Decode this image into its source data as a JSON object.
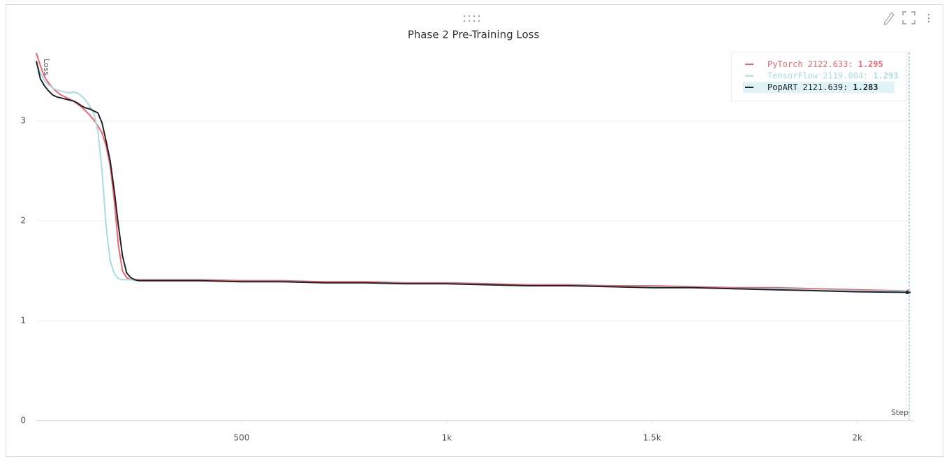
{
  "chart_data": {
    "type": "line",
    "title": "Phase 2 Pre-Training Loss",
    "y_label": "Loss",
    "x_label": "Step",
    "x": [
      0,
      10,
      20,
      30,
      40,
      50,
      60,
      70,
      80,
      90,
      100,
      110,
      120,
      130,
      140,
      150,
      160,
      170,
      180,
      190,
      200,
      210,
      220,
      230,
      240,
      250,
      300,
      400,
      500,
      600,
      700,
      800,
      900,
      1000,
      1100,
      1200,
      1300,
      1400,
      1500,
      1600,
      1700,
      1800,
      1900,
      2000,
      2100,
      2130
    ],
    "series": [
      {
        "name": "PyTorch",
        "color": "#ee6770",
        "hover_step": {
          "value": 2122.633,
          "label": "2122.633:"
        },
        "hover_value": 1.295,
        "values": [
          3.68,
          3.55,
          3.44,
          3.38,
          3.33,
          3.29,
          3.26,
          3.24,
          3.22,
          3.2,
          3.17,
          3.14,
          3.1,
          3.06,
          3.01,
          2.95,
          2.88,
          2.75,
          2.55,
          2.2,
          1.75,
          1.5,
          1.43,
          1.41,
          1.41,
          1.41,
          1.41,
          1.41,
          1.4,
          1.4,
          1.39,
          1.39,
          1.38,
          1.38,
          1.37,
          1.36,
          1.36,
          1.35,
          1.35,
          1.34,
          1.33,
          1.33,
          1.32,
          1.31,
          1.3,
          1.295
        ]
      },
      {
        "name": "TensorFlow",
        "color": "#a8dde1",
        "hover_step": {
          "value": 2119.004,
          "label": "2119.004:"
        },
        "hover_value": 1.293,
        "values": [
          3.58,
          3.48,
          3.4,
          3.36,
          3.33,
          3.31,
          3.3,
          3.29,
          3.28,
          3.29,
          3.28,
          3.25,
          3.21,
          3.15,
          3.08,
          2.9,
          2.5,
          1.95,
          1.6,
          1.47,
          1.42,
          1.41,
          1.41,
          1.41,
          1.4,
          1.4,
          1.4,
          1.4,
          1.39,
          1.39,
          1.38,
          1.38,
          1.37,
          1.37,
          1.36,
          1.35,
          1.35,
          1.34,
          1.34,
          1.33,
          1.32,
          1.32,
          1.31,
          1.3,
          1.295,
          1.293
        ]
      },
      {
        "name": "PopART",
        "color": "#1f2329",
        "hover_step": {
          "value": 2121.639,
          "label": "2121.639:"
        },
        "hover_value": 1.283,
        "values": [
          3.6,
          3.42,
          3.35,
          3.3,
          3.26,
          3.24,
          3.23,
          3.22,
          3.21,
          3.2,
          3.18,
          3.15,
          3.13,
          3.12,
          3.1,
          3.08,
          2.98,
          2.8,
          2.6,
          2.3,
          1.95,
          1.65,
          1.48,
          1.43,
          1.41,
          1.4,
          1.4,
          1.4,
          1.39,
          1.39,
          1.38,
          1.38,
          1.37,
          1.37,
          1.36,
          1.35,
          1.35,
          1.34,
          1.33,
          1.33,
          1.32,
          1.31,
          1.3,
          1.29,
          1.285,
          1.283
        ]
      }
    ],
    "xlim": [
      0,
      2135
    ],
    "ylim": [
      0,
      3.7
    ],
    "xticks": [
      500,
      {
        "value": 1000,
        "label": "1k"
      },
      {
        "value": 1500,
        "label": "1.5k"
      },
      {
        "value": 2000,
        "label": "2k"
      }
    ],
    "yticks": [
      0,
      1,
      2,
      3
    ],
    "grid": true,
    "legend": "top-right"
  }
}
